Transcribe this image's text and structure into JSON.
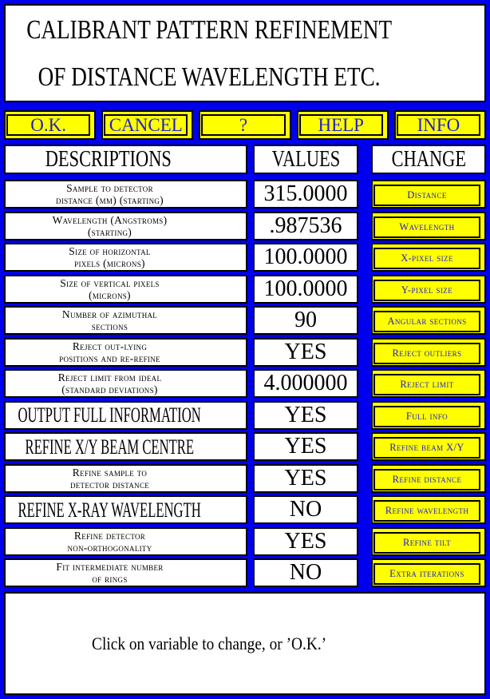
{
  "window": {
    "title_line1": "CALIBRANT PATTERN REFINEMENT",
    "title_line2": "OF DISTANCE WAVELENGTH ETC."
  },
  "toolbar": {
    "ok": "O.K.",
    "cancel": "CANCEL",
    "query": "?",
    "help": "HELP",
    "info": "INFO"
  },
  "table": {
    "header": {
      "descriptions": "DESCRIPTIONS",
      "values": "VALUES",
      "change": "CHANGE"
    },
    "rows": [
      {
        "desc1": "Sample to detector",
        "desc2": "distance (mm) (starting)",
        "value": "315.0000",
        "button": "Distance"
      },
      {
        "desc1": "Wavelength (Angstroms)",
        "desc2": "(starting)",
        "value": ".987536",
        "button": "Wavelength"
      },
      {
        "desc1": "Size of horizontal",
        "desc2": "pixels (microns)",
        "value": "100.0000",
        "button": "X-pixel size"
      },
      {
        "desc1": "Size of vertical pixels",
        "desc2": "(microns)",
        "value": "100.0000",
        "button": "Y-pixel size"
      },
      {
        "desc1": "Number of azimuthal",
        "desc2": "sections",
        "value": "90",
        "button": "Angular sections"
      },
      {
        "desc1": "Reject out-lying",
        "desc2": "positions and re-refine",
        "value": "YES",
        "button": "Reject outliers"
      },
      {
        "desc1": "Reject limit from ideal",
        "desc2": "(standard deviations)",
        "value": "4.000000",
        "button": "Reject limit"
      },
      {
        "desc1": "OUTPUT FULL INFORMATION",
        "desc2": "",
        "value": "YES",
        "button": "Full info"
      },
      {
        "desc1": "REFINE X/Y BEAM CENTRE",
        "desc2": "",
        "value": "YES",
        "button": "Refine beam X/Y"
      },
      {
        "desc1": "Refine sample to",
        "desc2": "detector distance",
        "value": "YES",
        "button": "Refine distance"
      },
      {
        "desc1": "REFINE X-RAY WAVELENGTH",
        "desc2": "",
        "value": "NO",
        "button": "Refine wavelength"
      },
      {
        "desc1": "Refine detector",
        "desc2": "non-orthogonality",
        "value": "YES",
        "button": "Refine tilt"
      },
      {
        "desc1": "Fit intermediate number",
        "desc2": "of rings",
        "value": "NO",
        "button": "Extra iterations"
      }
    ]
  },
  "footer": {
    "message": "Click on variable to change, or ’O.K.’"
  },
  "colors": {
    "background_blue": "#0000ee",
    "panel_white": "#ffffff",
    "button_yellow": "#ffff00",
    "button_text_blue": "#2121cd",
    "text_black": "#000000"
  }
}
